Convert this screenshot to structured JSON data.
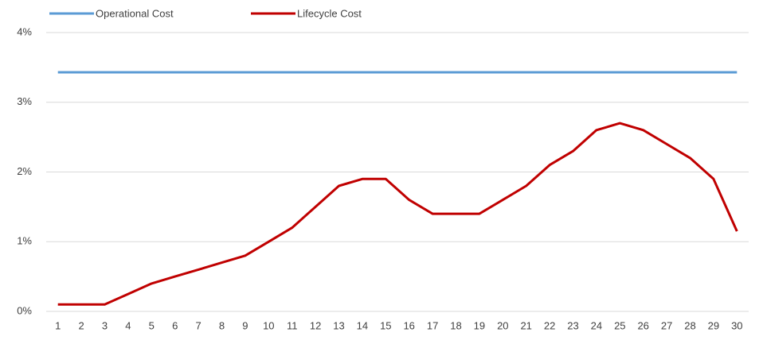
{
  "chart_data": {
    "type": "line",
    "categories": [
      "1",
      "2",
      "3",
      "4",
      "5",
      "6",
      "7",
      "8",
      "9",
      "10",
      "11",
      "12",
      "13",
      "14",
      "15",
      "16",
      "17",
      "18",
      "19",
      "20",
      "21",
      "22",
      "23",
      "24",
      "25",
      "26",
      "27",
      "28",
      "29",
      "30"
    ],
    "series": [
      {
        "name": "Operational Cost",
        "color": "#5b9bd5",
        "values": [
          3.43,
          3.43,
          3.43,
          3.43,
          3.43,
          3.43,
          3.43,
          3.43,
          3.43,
          3.43,
          3.43,
          3.43,
          3.43,
          3.43,
          3.43,
          3.43,
          3.43,
          3.43,
          3.43,
          3.43,
          3.43,
          3.43,
          3.43,
          3.43,
          3.43,
          3.43,
          3.43,
          3.43,
          3.43,
          3.43
        ]
      },
      {
        "name": "Lifecycle Cost",
        "color": "#c00000",
        "values": [
          0.1,
          0.1,
          0.1,
          0.25,
          0.4,
          0.5,
          0.6,
          0.7,
          0.8,
          1.0,
          1.2,
          1.5,
          1.8,
          1.9,
          1.9,
          1.6,
          1.4,
          1.4,
          1.4,
          1.6,
          1.8,
          2.1,
          2.3,
          2.6,
          2.7,
          2.6,
          2.4,
          2.2,
          1.9,
          1.15
        ]
      }
    ],
    "ylim": [
      0,
      4
    ],
    "yticks": [
      {
        "value": 0,
        "label": "0%"
      },
      {
        "value": 1,
        "label": "1%"
      },
      {
        "value": 2,
        "label": "2%"
      },
      {
        "value": 3,
        "label": "3%"
      },
      {
        "value": 4,
        "label": "4%"
      }
    ],
    "grid": true,
    "legend": "top"
  }
}
